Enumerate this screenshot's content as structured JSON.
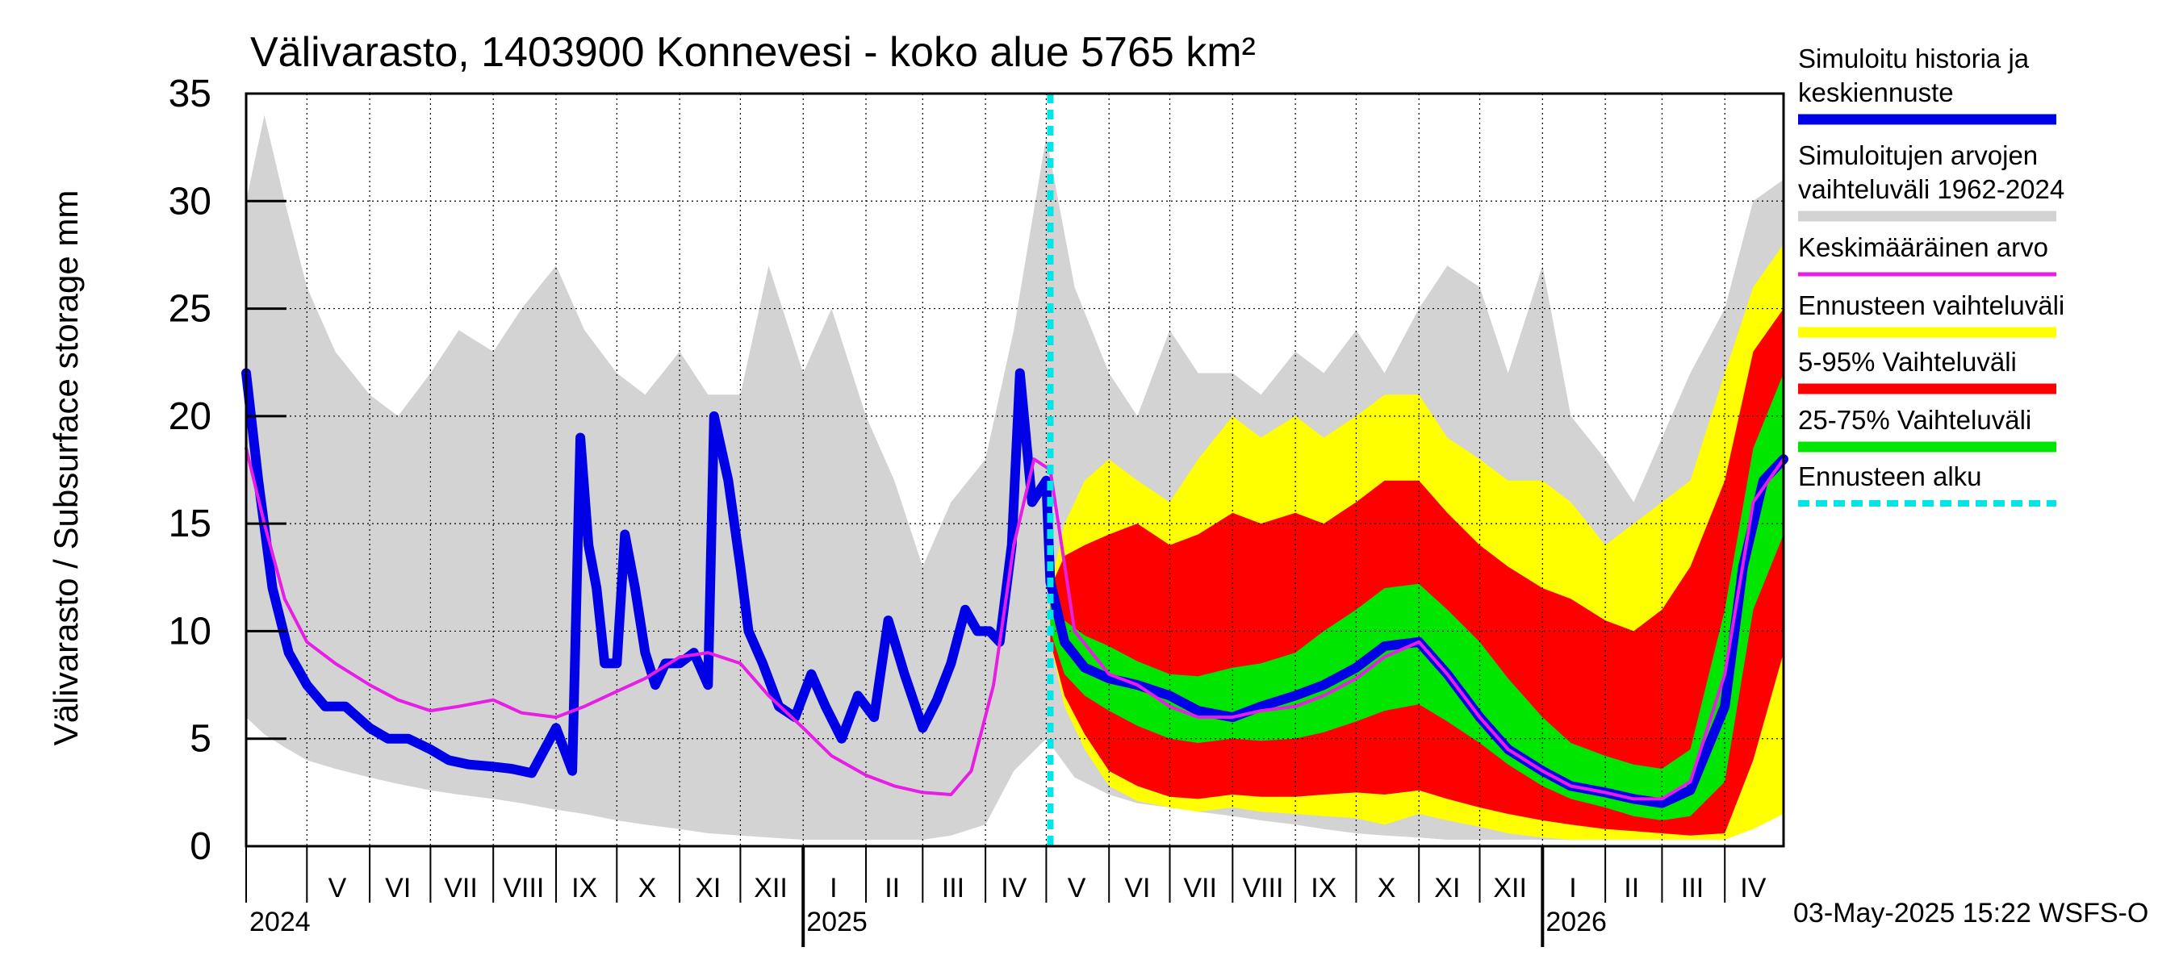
{
  "chart_data": {
    "type": "area",
    "title": "Välivarasto, 1403900 Konnevesi - koko alue 5765 km²",
    "ylabel": "Välivarasto / Subsurface storage  mm",
    "xlabel": "",
    "ylim": [
      0,
      35
    ],
    "xlim": [
      "2024-04-01",
      "2026-04-30"
    ],
    "grid": true,
    "legend_position": "right",
    "y_ticks": [
      "35",
      "30",
      "25",
      "20",
      "15",
      "10",
      "5",
      "0"
    ],
    "y_tick_values": [
      35,
      30,
      25,
      20,
      15,
      10,
      5,
      0
    ],
    "month_labels": [
      {
        "label": "V",
        "date": "2024-05-16"
      },
      {
        "label": "VI",
        "date": "2024-06-15"
      },
      {
        "label": "VII",
        "date": "2024-07-16"
      },
      {
        "label": "VIII",
        "date": "2024-08-16"
      },
      {
        "label": "IX",
        "date": "2024-09-15"
      },
      {
        "label": "X",
        "date": "2024-10-16"
      },
      {
        "label": "XI",
        "date": "2024-11-15"
      },
      {
        "label": "XII",
        "date": "2024-12-16"
      },
      {
        "label": "I",
        "date": "2025-01-16"
      },
      {
        "label": "II",
        "date": "2025-02-14"
      },
      {
        "label": "III",
        "date": "2025-03-16"
      },
      {
        "label": "IV",
        "date": "2025-04-15"
      },
      {
        "label": "V",
        "date": "2025-05-16"
      },
      {
        "label": "VI",
        "date": "2025-06-15"
      },
      {
        "label": "VII",
        "date": "2025-07-16"
      },
      {
        "label": "VIII",
        "date": "2025-08-16"
      },
      {
        "label": "IX",
        "date": "2025-09-15"
      },
      {
        "label": "X",
        "date": "2025-10-16"
      },
      {
        "label": "XI",
        "date": "2025-11-15"
      },
      {
        "label": "XII",
        "date": "2025-12-16"
      },
      {
        "label": "I",
        "date": "2026-01-16"
      },
      {
        "label": "II",
        "date": "2026-02-14"
      },
      {
        "label": "III",
        "date": "2026-03-16"
      },
      {
        "label": "IV",
        "date": "2026-04-15"
      }
    ],
    "month_boundaries": [
      "2024-05-01",
      "2024-06-01",
      "2024-07-01",
      "2024-08-01",
      "2024-09-01",
      "2024-10-01",
      "2024-11-01",
      "2024-12-01",
      "2025-01-01",
      "2025-02-01",
      "2025-03-01",
      "2025-04-01",
      "2025-05-01",
      "2025-06-01",
      "2025-07-01",
      "2025-08-01",
      "2025-09-01",
      "2025-10-01",
      "2025-11-01",
      "2025-12-01",
      "2026-01-01",
      "2026-02-01",
      "2026-03-01",
      "2026-04-01"
    ],
    "year_labels": [
      {
        "label": "2024",
        "date": "2024-04-01"
      },
      {
        "label": "2025",
        "date": "2025-01-01"
      },
      {
        "label": "2026",
        "date": "2026-01-01"
      }
    ],
    "forecast_start": "2025-05-03",
    "footer": "03-May-2025 15:22 WSFS-O",
    "legend": [
      {
        "label": "Simuloitu historia ja keskiennuste",
        "lines": [
          "Simuloitu historia ja",
          "keskiennuste"
        ],
        "color": "#0000e6",
        "style": "thick-line"
      },
      {
        "label": "Simuloitujen arvojen vaihteluväli 1962-2024",
        "lines": [
          "Simuloitujen arvojen",
          "vaihteluväli 1962-2024"
        ],
        "color": "#d3d3d3",
        "style": "thick-line"
      },
      {
        "label": "Keskimääräinen arvo",
        "lines": [
          "Keskimääräinen arvo"
        ],
        "color": "#e61ee6",
        "style": "line"
      },
      {
        "label": "Ennusteen vaihteluväli",
        "lines": [
          "Ennusteen vaihteluväli"
        ],
        "color": "#ffff00",
        "style": "thick-line"
      },
      {
        "label": "5-95% Vaihteluväli",
        "lines": [
          "5-95% Vaihteluväli"
        ],
        "color": "#ff0000",
        "style": "thick-line"
      },
      {
        "label": "25-75% Vaihteluväli",
        "lines": [
          "25-75% Vaihteluväli"
        ],
        "color": "#00e600",
        "style": "thick-line"
      },
      {
        "label": "Ennusteen alku",
        "lines": [
          "Ennusteen alku"
        ],
        "color": "#00e6e6",
        "style": "dashed"
      }
    ],
    "series": [
      {
        "name": "Simuloitujen arvojen vaihteluväli 1962-2024",
        "kind": "band",
        "color": "#d3d3d3",
        "x": [
          "2024-04-01",
          "2024-04-10",
          "2024-04-20",
          "2024-05-01",
          "2024-05-15",
          "2024-06-01",
          "2024-06-15",
          "2024-07-01",
          "2024-07-15",
          "2024-08-01",
          "2024-08-15",
          "2024-09-01",
          "2024-09-15",
          "2024-10-01",
          "2024-10-15",
          "2024-11-01",
          "2024-11-15",
          "2024-12-01",
          "2024-12-15",
          "2025-01-01",
          "2025-01-15",
          "2025-02-01",
          "2025-02-15",
          "2025-03-01",
          "2025-03-15",
          "2025-04-01",
          "2025-04-15",
          "2025-05-01",
          "2025-05-15",
          "2025-06-01",
          "2025-06-15",
          "2025-07-01",
          "2025-07-15",
          "2025-08-01",
          "2025-08-15",
          "2025-09-01",
          "2025-09-15",
          "2025-10-01",
          "2025-10-15",
          "2025-11-01",
          "2025-11-15",
          "2025-12-01",
          "2025-12-15",
          "2026-01-01",
          "2026-01-15",
          "2026-02-01",
          "2026-02-15",
          "2026-03-01",
          "2026-03-15",
          "2026-04-01",
          "2026-04-15",
          "2026-04-30"
        ],
        "low": [
          6,
          5.2,
          4.6,
          4.0,
          3.6,
          3.2,
          2.9,
          2.6,
          2.4,
          2.2,
          2.0,
          1.7,
          1.5,
          1.2,
          1.0,
          0.8,
          0.6,
          0.5,
          0.4,
          0.3,
          0.3,
          0.3,
          0.3,
          0.3,
          0.5,
          1.0,
          3.5,
          5.0,
          3.2,
          2.4,
          2.0,
          1.8,
          1.6,
          1.4,
          1.2,
          1.0,
          0.8,
          0.6,
          0.5,
          0.4,
          0.3,
          0.3,
          0.3,
          0.3,
          0.3,
          0.3,
          0.3,
          0.3,
          0.3,
          0.5,
          2.0,
          5.5
        ],
        "high": [
          30,
          34,
          30,
          26,
          23,
          21,
          20,
          22,
          24,
          23,
          25,
          27,
          24,
          22,
          21,
          23,
          21,
          21,
          27,
          22,
          25,
          20,
          17,
          13,
          16,
          18,
          24,
          33,
          26,
          22,
          20,
          24,
          22,
          22,
          21,
          23,
          22,
          24,
          22,
          25,
          27,
          26,
          22,
          27,
          20,
          18,
          16,
          19,
          22,
          25,
          30,
          31
        ]
      },
      {
        "name": "Ennusteen vaihteluväli",
        "kind": "band",
        "color": "#ffff00",
        "x": [
          "2025-05-03",
          "2025-05-10",
          "2025-05-20",
          "2025-06-01",
          "2025-06-15",
          "2025-07-01",
          "2025-07-15",
          "2025-08-01",
          "2025-08-15",
          "2025-09-01",
          "2025-09-15",
          "2025-10-01",
          "2025-10-15",
          "2025-11-01",
          "2025-11-15",
          "2025-12-01",
          "2025-12-15",
          "2026-01-01",
          "2026-01-15",
          "2026-02-01",
          "2026-02-15",
          "2026-03-01",
          "2026-03-15",
          "2026-04-01",
          "2026-04-15",
          "2026-04-30"
        ],
        "low": [
          9.5,
          6.5,
          4.5,
          2.8,
          2.1,
          1.8,
          1.6,
          1.8,
          1.6,
          1.5,
          1.4,
          1.3,
          1.0,
          1.5,
          1.2,
          0.9,
          0.6,
          0.4,
          0.3,
          0.3,
          0.3,
          0.3,
          0.3,
          0.3,
          0.8,
          1.5
        ],
        "high": [
          12,
          15,
          17,
          18,
          17,
          16,
          18,
          20,
          19,
          20,
          19,
          20,
          21,
          21,
          19,
          18,
          17,
          17,
          16,
          14,
          15,
          16,
          17,
          22,
          26,
          28
        ]
      },
      {
        "name": "5-95% Vaihteluväli",
        "kind": "band",
        "color": "#ff0000",
        "x": [
          "2025-05-03",
          "2025-05-10",
          "2025-05-20",
          "2025-06-01",
          "2025-06-15",
          "2025-07-01",
          "2025-07-15",
          "2025-08-01",
          "2025-08-15",
          "2025-09-01",
          "2025-09-15",
          "2025-10-01",
          "2025-10-15",
          "2025-11-01",
          "2025-11-15",
          "2025-12-01",
          "2025-12-15",
          "2026-01-01",
          "2026-01-15",
          "2026-02-01",
          "2026-02-15",
          "2026-03-01",
          "2026-03-15",
          "2026-04-01",
          "2026-04-15",
          "2026-04-30"
        ],
        "low": [
          9.5,
          7.0,
          5.2,
          3.5,
          2.8,
          2.3,
          2.2,
          2.4,
          2.3,
          2.3,
          2.4,
          2.5,
          2.4,
          2.6,
          2.2,
          1.8,
          1.5,
          1.2,
          1.0,
          0.8,
          0.7,
          0.6,
          0.5,
          0.6,
          4.0,
          9.0
        ],
        "high": [
          12,
          13.5,
          14.0,
          14.5,
          15.0,
          14.0,
          14.5,
          15.5,
          15.0,
          15.5,
          15.0,
          16.0,
          17.0,
          17.0,
          15.5,
          14.0,
          13.0,
          12.0,
          11.5,
          10.5,
          10.0,
          11.0,
          13.0,
          17.0,
          23.0,
          25.0
        ]
      },
      {
        "name": "25-75% Vaihteluväli",
        "kind": "band",
        "color": "#00e600",
        "x": [
          "2025-05-03",
          "2025-05-10",
          "2025-05-20",
          "2025-06-01",
          "2025-06-15",
          "2025-07-01",
          "2025-07-15",
          "2025-08-01",
          "2025-08-15",
          "2025-09-01",
          "2025-09-15",
          "2025-10-01",
          "2025-10-15",
          "2025-11-01",
          "2025-11-15",
          "2025-12-01",
          "2025-12-15",
          "2026-01-01",
          "2026-01-15",
          "2026-02-01",
          "2026-02-15",
          "2026-03-01",
          "2026-03-15",
          "2026-04-01",
          "2026-04-15",
          "2026-04-30"
        ],
        "low": [
          10.0,
          8.0,
          7.0,
          6.3,
          5.6,
          5.0,
          4.8,
          5.0,
          4.9,
          5.0,
          5.3,
          5.8,
          6.3,
          6.6,
          5.8,
          4.8,
          3.8,
          2.8,
          2.2,
          1.8,
          1.4,
          1.2,
          1.4,
          3.0,
          11.0,
          14.5
        ],
        "high": [
          11.5,
          10.5,
          9.8,
          9.3,
          8.6,
          8.0,
          7.9,
          8.3,
          8.5,
          9.0,
          10.0,
          11.0,
          12.0,
          12.2,
          11.0,
          9.5,
          7.8,
          6.0,
          4.8,
          4.2,
          3.8,
          3.6,
          4.5,
          11.0,
          18.5,
          22.0
        ]
      },
      {
        "name": "Simuloitu historia ja keskiennuste",
        "kind": "line",
        "color": "#0000e6",
        "x": [
          "2024-04-01",
          "2024-04-07",
          "2024-04-14",
          "2024-04-22",
          "2024-05-01",
          "2024-05-10",
          "2024-05-20",
          "2024-06-01",
          "2024-06-10",
          "2024-06-20",
          "2024-07-01",
          "2024-07-10",
          "2024-07-20",
          "2024-08-01",
          "2024-08-10",
          "2024-08-20",
          "2024-09-01",
          "2024-09-05",
          "2024-09-09",
          "2024-09-13",
          "2024-09-17",
          "2024-09-21",
          "2024-09-25",
          "2024-10-01",
          "2024-10-05",
          "2024-10-10",
          "2024-10-15",
          "2024-10-20",
          "2024-10-25",
          "2024-11-01",
          "2024-11-08",
          "2024-11-15",
          "2024-11-18",
          "2024-11-25",
          "2024-12-01",
          "2024-12-05",
          "2024-12-12",
          "2024-12-20",
          "2024-12-28",
          "2025-01-05",
          "2025-01-12",
          "2025-01-20",
          "2025-01-28",
          "2025-02-05",
          "2025-02-12",
          "2025-02-20",
          "2025-03-01",
          "2025-03-08",
          "2025-03-15",
          "2025-03-22",
          "2025-03-28",
          "2025-04-03",
          "2025-04-08",
          "2025-04-14",
          "2025-04-18",
          "2025-04-24",
          "2025-05-01",
          "2025-05-03",
          "2025-05-10",
          "2025-05-20",
          "2025-06-01",
          "2025-06-15",
          "2025-07-01",
          "2025-07-15",
          "2025-08-01",
          "2025-08-15",
          "2025-09-01",
          "2025-09-15",
          "2025-10-01",
          "2025-10-15",
          "2025-11-01",
          "2025-11-15",
          "2025-12-01",
          "2025-12-15",
          "2026-01-01",
          "2026-01-15",
          "2026-02-01",
          "2026-02-15",
          "2026-03-01",
          "2026-03-15",
          "2026-04-01",
          "2026-04-10",
          "2026-04-20",
          "2026-04-30"
        ],
        "values": [
          22,
          17,
          12,
          9,
          7.5,
          6.5,
          6.5,
          5.5,
          5.0,
          5.0,
          4.5,
          4.0,
          3.8,
          3.7,
          3.6,
          3.4,
          5.5,
          4.5,
          3.5,
          19,
          14,
          12,
          8.5,
          8.5,
          14.5,
          12,
          9.0,
          7.5,
          8.5,
          8.5,
          9.0,
          7.5,
          20,
          17,
          13,
          10,
          8.5,
          6.5,
          6.0,
          8.0,
          6.5,
          5.0,
          7.0,
          6.0,
          10.5,
          8.0,
          5.5,
          6.8,
          8.5,
          11,
          10,
          10,
          9.5,
          14,
          22,
          16,
          17,
          12.3,
          9.5,
          8.3,
          7.8,
          7.5,
          7.0,
          6.3,
          6.0,
          6.5,
          7.0,
          7.5,
          8.3,
          9.3,
          9.5,
          8.0,
          6.0,
          4.5,
          3.5,
          2.8,
          2.5,
          2.2,
          2.0,
          2.6,
          6.5,
          13,
          17,
          18
        ]
      },
      {
        "name": "Keskimääräinen arvo",
        "kind": "line",
        "color": "#e61ee6",
        "x": [
          "2024-04-01",
          "2024-04-10",
          "2024-04-20",
          "2024-05-01",
          "2024-05-15",
          "2024-06-01",
          "2024-06-15",
          "2024-07-01",
          "2024-07-15",
          "2024-08-01",
          "2024-08-15",
          "2024-09-01",
          "2024-09-15",
          "2024-10-01",
          "2024-10-15",
          "2024-11-01",
          "2024-11-15",
          "2024-12-01",
          "2024-12-15",
          "2025-01-01",
          "2025-01-15",
          "2025-02-01",
          "2025-02-15",
          "2025-03-01",
          "2025-03-15",
          "2025-03-25",
          "2025-04-05",
          "2025-04-15",
          "2025-04-25",
          "2025-05-03",
          "2025-05-15",
          "2025-06-01",
          "2025-06-15",
          "2025-07-01",
          "2025-07-15",
          "2025-08-01",
          "2025-08-15",
          "2025-09-01",
          "2025-09-15",
          "2025-10-01",
          "2025-10-15",
          "2025-11-01",
          "2025-11-15",
          "2025-12-01",
          "2025-12-15",
          "2026-01-01",
          "2026-01-15",
          "2026-02-01",
          "2026-02-15",
          "2026-03-01",
          "2026-03-15",
          "2026-04-01",
          "2026-04-15",
          "2026-04-30"
        ],
        "values": [
          18.5,
          15,
          11.5,
          9.5,
          8.5,
          7.5,
          6.8,
          6.3,
          6.5,
          6.8,
          6.2,
          6.0,
          6.5,
          7.2,
          7.8,
          8.8,
          9.0,
          8.5,
          7.0,
          5.5,
          4.2,
          3.3,
          2.8,
          2.5,
          2.4,
          3.5,
          7.5,
          14,
          18,
          17.5,
          10,
          8.0,
          7.5,
          6.5,
          6.0,
          6.0,
          6.3,
          6.5,
          7.0,
          7.8,
          8.8,
          9.5,
          8.0,
          6.0,
          4.5,
          3.5,
          2.8,
          2.5,
          2.2,
          2.2,
          3.0,
          8.0,
          16,
          18
        ]
      }
    ]
  }
}
